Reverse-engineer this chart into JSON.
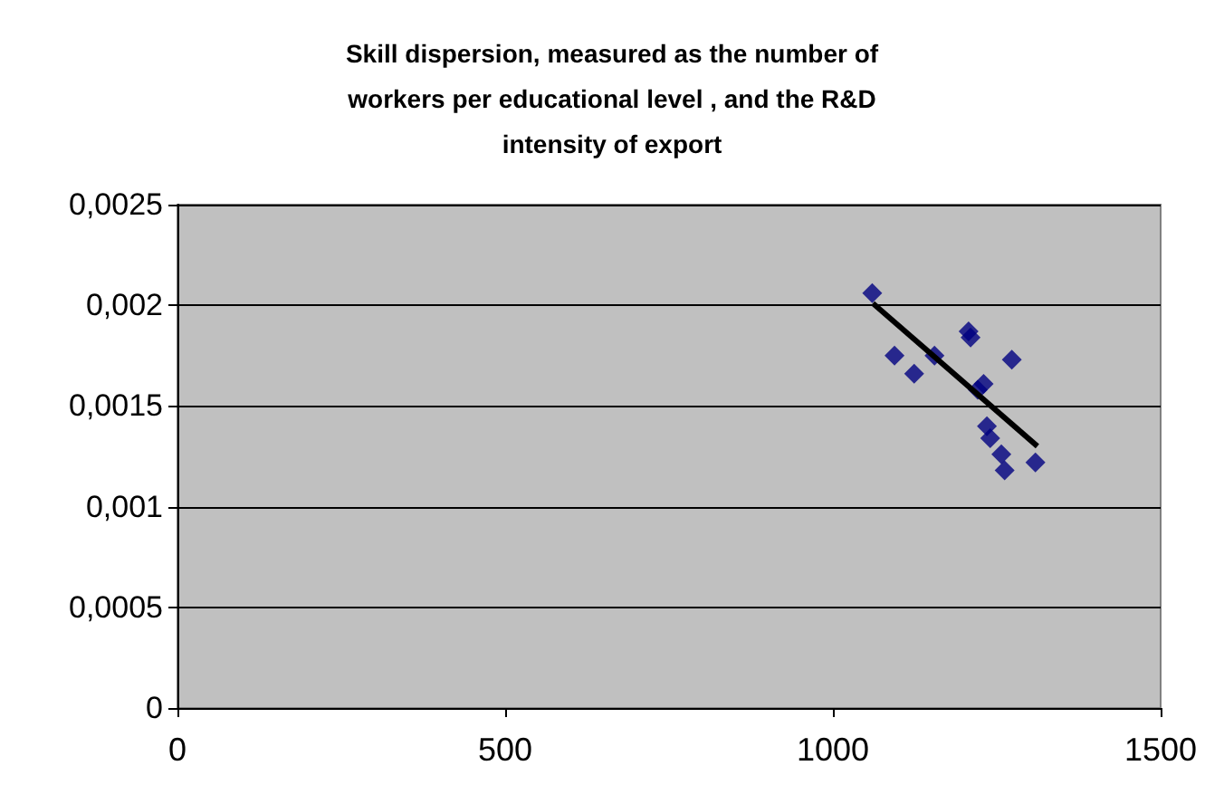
{
  "chart_data": {
    "type": "scatter",
    "title": "Skill dispersion, measured as the number of\nworkers per educational level , and the R&D\nintensity of export",
    "series": [
      {
        "color": "#000080",
        "marker": "diamond",
        "x": [
          1060,
          1094,
          1124,
          1155,
          1207,
          1210,
          1230,
          1221,
          1273,
          1235,
          1240,
          1257,
          1262,
          1309
        ],
        "values": [
          0.00206,
          0.00175,
          0.00166,
          0.00175,
          0.00187,
          0.00184,
          0.00161,
          0.00158,
          0.00173,
          0.0014,
          0.00134,
          0.00126,
          0.00118,
          0.00122
        ]
      },
      {
        "type": "line",
        "color": "#000000",
        "marker": "none",
        "x": [
          1061,
          1312
        ],
        "values": [
          0.00201,
          0.0013
        ]
      }
    ],
    "xlim": [
      0,
      1500
    ],
    "xticks": [
      0,
      500,
      1000,
      1500
    ],
    "ylim": [
      0,
      0.0025
    ],
    "yticks": [
      {
        "value": 0,
        "label": "0"
      },
      {
        "value": 0.0005,
        "label": "0,0005"
      },
      {
        "value": 0.001,
        "label": "0,001"
      },
      {
        "value": 0.0015,
        "label": "0,0015"
      },
      {
        "value": 0.002,
        "label": "0,002"
      },
      {
        "value": 0.0025,
        "label": "0,0025"
      }
    ],
    "grid": "y"
  }
}
